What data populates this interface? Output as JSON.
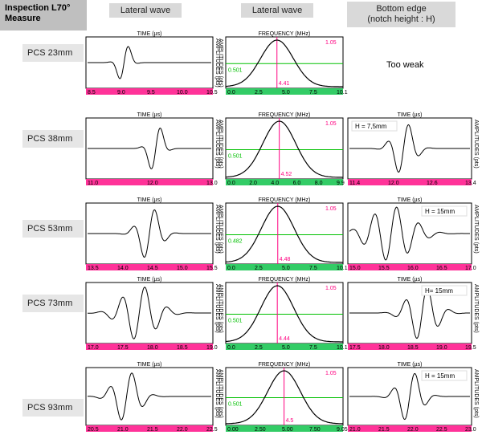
{
  "headers": {
    "title_line1": "Inspection L70°",
    "title_line2": "Measure",
    "col1": "Lateral wave",
    "col2": "Lateral wave",
    "col3_line1": "Bottom edge",
    "col3_line2": "(notch height : H)"
  },
  "labels": {
    "time": "TIME (µs)",
    "frequency": "FREQUENCY (MHz)",
    "amplitudes": "AMPLITUDES (pts)",
    "too_weak": "Too weak"
  },
  "colors": {
    "magenta": "#ff0080",
    "green": "#00c000",
    "axis_bar": "#ff3399",
    "spectrum_bar": "#33cc66",
    "header_bg": "#d9d9d9",
    "label_bg": "#e6e6e6"
  },
  "chart_data": [
    {
      "type": "line",
      "row": "PCS 23mm",
      "panel": "time",
      "ticks": [
        "8.5",
        "9.0",
        "9.5",
        "10.0",
        "10.5"
      ],
      "xlim": [
        8.5,
        10.5
      ],
      "cycles": 2,
      "decay": 0.35,
      "center": 0.3
    },
    {
      "type": "line",
      "row": "PCS 23mm",
      "panel": "spectrum",
      "ticks": [
        "0.0",
        "2.5",
        "5.0",
        "7.5",
        "10.1"
      ],
      "xlim": [
        0,
        10.1
      ],
      "peak_freq": 4.41,
      "peak_label": "4.41",
      "half_level": "0.501",
      "max_label": "1.05"
    },
    {
      "type": "note",
      "row": "PCS 23mm",
      "panel": "bottom",
      "text": "Too weak"
    },
    {
      "type": "line",
      "row": "PCS 38mm",
      "panel": "time",
      "ticks": [
        "11.0",
        "12.0",
        "13.0"
      ],
      "xlim": [
        11,
        13
      ],
      "cycles": 2,
      "decay": 0.4,
      "center": 0.55
    },
    {
      "type": "line",
      "row": "PCS 38mm",
      "panel": "spectrum",
      "ticks": [
        "0.0",
        "2.0",
        "4.0",
        "6.0",
        "8.0",
        "9.9"
      ],
      "xlim": [
        0,
        9.9
      ],
      "peak_freq": 4.52,
      "peak_label": "4.52",
      "half_level": "0.501",
      "max_label": "1.05"
    },
    {
      "type": "line",
      "row": "PCS 38mm",
      "panel": "bottom",
      "ticks": [
        "11.4",
        "12.0",
        "12.6",
        "13.4"
      ],
      "xlim": [
        11.4,
        13.4
      ],
      "cycles": 3,
      "decay": 0.5,
      "center": 0.45,
      "h": "H = 7,5mm"
    },
    {
      "type": "line",
      "row": "PCS 53mm",
      "panel": "time",
      "ticks": [
        "13.5",
        "14.0",
        "14.5",
        "15.0",
        "15.5"
      ],
      "xlim": [
        13.5,
        15.5
      ],
      "cycles": 3,
      "decay": 0.5,
      "center": 0.5
    },
    {
      "type": "line",
      "row": "PCS 53mm",
      "panel": "spectrum",
      "ticks": [
        "0.0",
        "2.5",
        "5.0",
        "7.5",
        "10.1"
      ],
      "xlim": [
        0,
        10.1
      ],
      "peak_freq": 4.48,
      "peak_label": "4.48",
      "half_level": "0.482",
      "max_label": "1.05"
    },
    {
      "type": "line",
      "row": "PCS 53mm",
      "panel": "bottom",
      "ticks": [
        "15.0",
        "15.5",
        "16.0",
        "16.5",
        "17.0"
      ],
      "xlim": [
        15,
        17
      ],
      "cycles": 5,
      "decay": 0.8,
      "center": 0.35,
      "h": "H = 15mm"
    },
    {
      "type": "line",
      "row": "PCS 73mm",
      "panel": "time",
      "ticks": [
        "17.0",
        "17.5",
        "18.0",
        "18.5",
        "19.0"
      ],
      "xlim": [
        17,
        19
      ],
      "cycles": 4,
      "decay": 0.7,
      "center": 0.42
    },
    {
      "type": "line",
      "row": "PCS 73mm",
      "panel": "spectrum",
      "ticks": [
        "0.0",
        "2.5",
        "5.0",
        "7.5",
        "10.1"
      ],
      "xlim": [
        0,
        10.1
      ],
      "peak_freq": 4.44,
      "peak_label": "4.44",
      "half_level": "0.501",
      "max_label": "1.05"
    },
    {
      "type": "line",
      "row": "PCS 73mm",
      "panel": "bottom",
      "ticks": [
        "17.5",
        "18.0",
        "18.5",
        "19.0",
        "19.5"
      ],
      "xlim": [
        17.5,
        19.5
      ],
      "cycles": 4,
      "decay": 0.6,
      "center": 0.6,
      "h": "H= 15mm"
    },
    {
      "type": "line",
      "row": "PCS 93mm",
      "panel": "time",
      "ticks": [
        "20.5",
        "21.0",
        "21.5",
        "22.0",
        "22.5"
      ],
      "xlim": [
        20.5,
        22.5
      ],
      "cycles": 3,
      "decay": 0.6,
      "center": 0.32
    },
    {
      "type": "line",
      "row": "PCS 93mm",
      "panel": "spectrum",
      "ticks": [
        "0.00",
        "2.50",
        "5.00",
        "7.50",
        "9.05"
      ],
      "xlim": [
        0,
        9.05
      ],
      "peak_freq": 4.5,
      "peak_label": "4.5",
      "half_level": "0.501",
      "max_label": "1.05"
    },
    {
      "type": "line",
      "row": "PCS 93mm",
      "panel": "bottom",
      "ticks": [
        "21.0",
        "21.5",
        "22.0",
        "22.5",
        "23.0"
      ],
      "xlim": [
        21,
        23
      ],
      "cycles": 3,
      "decay": 0.55,
      "center": 0.5,
      "h": "H = 15mm"
    }
  ]
}
